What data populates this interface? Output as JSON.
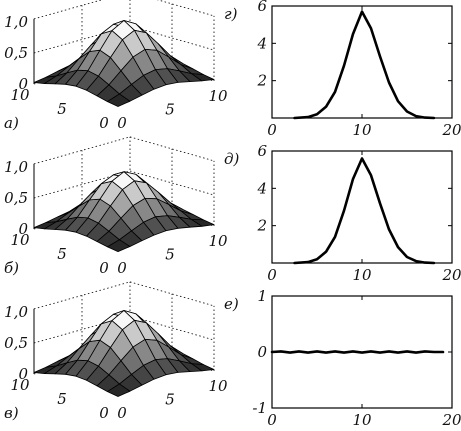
{
  "chart_data": [
    {
      "type": "surface",
      "label": "а)",
      "zlim": [
        0,
        1.0
      ],
      "x_ticks": [
        "0",
        "5",
        "10"
      ],
      "y_ticks": [
        "10",
        "5",
        "0"
      ],
      "z_ticks": [
        "1,0",
        "0,5",
        "0"
      ],
      "grid": true,
      "peak": 1.0,
      "x_range": [
        0,
        10
      ],
      "y_range": [
        0,
        10
      ]
    },
    {
      "type": "line",
      "label": "г)",
      "xlim": [
        0,
        20
      ],
      "ylim": [
        0,
        6
      ],
      "x_ticks": [
        "0",
        "10",
        "20"
      ],
      "y_ticks": [
        "2",
        "4",
        "6"
      ],
      "points": [
        [
          2.5,
          0
        ],
        [
          4,
          0.05
        ],
        [
          5,
          0.2
        ],
        [
          6,
          0.6
        ],
        [
          7,
          1.4
        ],
        [
          8,
          2.8
        ],
        [
          9,
          4.5
        ],
        [
          10,
          5.7
        ],
        [
          11,
          4.8
        ],
        [
          12,
          3.3
        ],
        [
          13,
          1.9
        ],
        [
          14,
          0.9
        ],
        [
          15,
          0.35
        ],
        [
          16,
          0.1
        ],
        [
          17,
          0.02
        ],
        [
          18,
          0
        ]
      ]
    },
    {
      "type": "surface",
      "label": "б)",
      "zlim": [
        0,
        1.0
      ],
      "x_ticks": [
        "0",
        "5",
        "10"
      ],
      "y_ticks": [
        "10",
        "5",
        "0"
      ],
      "z_ticks": [
        "1,0",
        "0,5",
        "0"
      ],
      "grid": true,
      "peak": 0.9,
      "x_range": [
        0,
        10
      ],
      "y_range": [
        0,
        10
      ]
    },
    {
      "type": "line",
      "label": "д)",
      "xlim": [
        0,
        20
      ],
      "ylim": [
        0,
        6
      ],
      "x_ticks": [
        "0",
        "10",
        "20"
      ],
      "y_ticks": [
        "2",
        "4",
        "6"
      ],
      "points": [
        [
          2.5,
          0
        ],
        [
          4,
          0.05
        ],
        [
          5,
          0.2
        ],
        [
          6,
          0.6
        ],
        [
          7,
          1.4
        ],
        [
          8,
          2.8
        ],
        [
          9,
          4.5
        ],
        [
          10,
          5.6
        ],
        [
          11,
          4.7
        ],
        [
          12,
          3.2
        ],
        [
          13,
          1.8
        ],
        [
          14,
          0.85
        ],
        [
          15,
          0.32
        ],
        [
          16,
          0.1
        ],
        [
          17,
          0.02
        ],
        [
          18,
          0
        ]
      ]
    },
    {
      "type": "surface",
      "label": "в)",
      "zlim": [
        0,
        1.0
      ],
      "x_ticks": [
        "0",
        "5",
        "10"
      ],
      "y_ticks": [
        "10",
        "5",
        "0"
      ],
      "z_ticks": [
        "1,0",
        "0,5",
        "0"
      ],
      "grid": true,
      "peak": 1.0,
      "x_range": [
        0,
        10
      ],
      "y_range": [
        0,
        10
      ]
    },
    {
      "type": "line",
      "label": "е)",
      "xlim": [
        0,
        20
      ],
      "ylim": [
        -1,
        1
      ],
      "x_ticks": [
        "0",
        "10",
        "20"
      ],
      "y_ticks": [
        "-1",
        "0",
        "1"
      ],
      "points": [
        [
          0,
          0
        ],
        [
          1,
          0.01
        ],
        [
          2,
          -0.01
        ],
        [
          3,
          0.01
        ],
        [
          4,
          -0.01
        ],
        [
          5,
          0.01
        ],
        [
          6,
          -0.01
        ],
        [
          7,
          0.01
        ],
        [
          8,
          -0.01
        ],
        [
          9,
          0.01
        ],
        [
          10,
          -0.01
        ],
        [
          11,
          0.01
        ],
        [
          12,
          -0.01
        ],
        [
          13,
          0.01
        ],
        [
          14,
          -0.01
        ],
        [
          15,
          0.01
        ],
        [
          16,
          -0.01
        ],
        [
          17,
          0.01
        ],
        [
          18,
          0.0
        ],
        [
          19,
          0.0
        ]
      ]
    }
  ]
}
